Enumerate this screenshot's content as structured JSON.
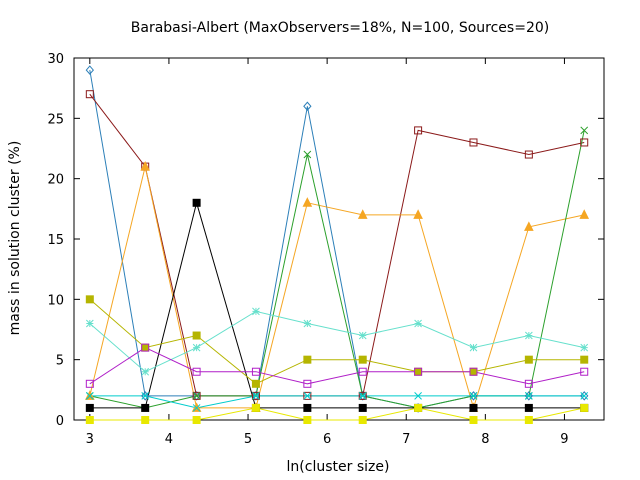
{
  "chart_data": {
    "type": "line",
    "title": "Barabasi-Albert (MaxObservers=18%, N=100, Sources=20)",
    "xlabel": "ln(cluster size)",
    "ylabel": "mass in solution cluster (%)",
    "xlim": [
      2.8,
      9.5
    ],
    "ylim": [
      0,
      30
    ],
    "xticks": [
      3,
      4,
      5,
      6,
      7,
      8,
      9
    ],
    "yticks": [
      0,
      5,
      10,
      15,
      20,
      25,
      30
    ],
    "grid": false,
    "x": [
      3.0,
      3.7,
      4.35,
      5.1,
      5.75,
      6.45,
      7.15,
      7.85,
      8.55,
      9.25
    ],
    "series": [
      {
        "color": "#2c7fb8",
        "marker": "diamond",
        "values": [
          29,
          2,
          2,
          2,
          26,
          2,
          1,
          2,
          2,
          2
        ]
      },
      {
        "color": "#8b1a1a",
        "marker": "square-open",
        "values": [
          27,
          21,
          2,
          2,
          2,
          2,
          24,
          23,
          22,
          23
        ]
      },
      {
        "color": "#f5a623",
        "marker": "triangle",
        "values": [
          2,
          21,
          1,
          1,
          18,
          17,
          17,
          1,
          16,
          17
        ]
      },
      {
        "color": "#2ca02c",
        "marker": "x",
        "values": [
          2,
          1,
          2,
          2,
          22,
          2,
          1,
          2,
          2,
          24
        ]
      },
      {
        "color": "#000000",
        "marker": "filled-square",
        "values": [
          1,
          1,
          18,
          1,
          1,
          1,
          1,
          1,
          1,
          1
        ]
      },
      {
        "color": "#b5b500",
        "marker": "filled-square",
        "values": [
          10,
          6,
          7,
          3,
          5,
          5,
          4,
          4,
          5,
          5
        ]
      },
      {
        "color": "#66e0cc",
        "marker": "star",
        "values": [
          8,
          4,
          6,
          9,
          8,
          7,
          8,
          6,
          7,
          6
        ]
      },
      {
        "color": "#b01fc8",
        "marker": "square-open",
        "values": [
          3,
          6,
          4,
          4,
          3,
          4,
          4,
          4,
          3,
          4
        ]
      },
      {
        "color": "#e8e800",
        "marker": "filled-square",
        "values": [
          0,
          0,
          0,
          1,
          0,
          0,
          1,
          0,
          0,
          1
        ]
      },
      {
        "color": "#00cccc",
        "marker": "x",
        "values": [
          2,
          2,
          1,
          2,
          2,
          2,
          2,
          2,
          2,
          2
        ]
      }
    ]
  }
}
